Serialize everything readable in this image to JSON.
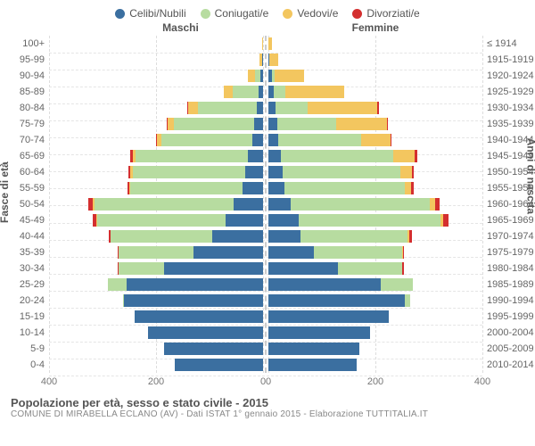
{
  "chart": {
    "type": "population-pyramid",
    "legend": [
      {
        "label": "Celibi/Nubili",
        "color": "#3b6fa0"
      },
      {
        "label": "Coniugati/e",
        "color": "#b7dca0"
      },
      {
        "label": "Vedovi/e",
        "color": "#f3c65f"
      },
      {
        "label": "Divorziati/e",
        "color": "#d42f2f"
      }
    ],
    "header_left": "Maschi",
    "header_right": "Femmine",
    "y_title_left": "Fasce di età",
    "y_title_right": "Anni di nascita",
    "x_max": 400,
    "x_ticks_left": [
      400,
      200,
      0
    ],
    "x_ticks_right": [
      0,
      200,
      400
    ],
    "background_color": "#ffffff",
    "grid_color": "#e5e5e5",
    "colors": {
      "celibi": "#3b6fa0",
      "coniugati": "#b7dca0",
      "vedovi": "#f3c65f",
      "divorziati": "#d42f2f"
    },
    "rows": [
      {
        "age": "100+",
        "year": "≤ 1914",
        "m": [
          0,
          0,
          2,
          0
        ],
        "f": [
          0,
          0,
          6,
          0
        ]
      },
      {
        "age": "95-99",
        "year": "1915-1919",
        "m": [
          2,
          0,
          5,
          0
        ],
        "f": [
          2,
          0,
          16,
          0
        ]
      },
      {
        "age": "90-94",
        "year": "1920-1924",
        "m": [
          5,
          10,
          14,
          0
        ],
        "f": [
          6,
          5,
          55,
          0
        ]
      },
      {
        "age": "85-89",
        "year": "1925-1929",
        "m": [
          8,
          48,
          18,
          0
        ],
        "f": [
          10,
          22,
          110,
          0
        ]
      },
      {
        "age": "80-84",
        "year": "1930-1934",
        "m": [
          12,
          110,
          18,
          2
        ],
        "f": [
          14,
          60,
          130,
          2
        ]
      },
      {
        "age": "75-79",
        "year": "1935-1939",
        "m": [
          16,
          150,
          12,
          2
        ],
        "f": [
          16,
          110,
          95,
          2
        ]
      },
      {
        "age": "70-74",
        "year": "1940-1944",
        "m": [
          20,
          170,
          8,
          2
        ],
        "f": [
          18,
          155,
          55,
          2
        ]
      },
      {
        "age": "65-69",
        "year": "1945-1949",
        "m": [
          28,
          210,
          6,
          4
        ],
        "f": [
          24,
          210,
          40,
          4
        ]
      },
      {
        "age": "60-64",
        "year": "1950-1954",
        "m": [
          34,
          210,
          4,
          4
        ],
        "f": [
          26,
          220,
          22,
          4
        ]
      },
      {
        "age": "55-59",
        "year": "1955-1959",
        "m": [
          38,
          210,
          2,
          4
        ],
        "f": [
          30,
          225,
          12,
          4
        ]
      },
      {
        "age": "50-54",
        "year": "1960-1964",
        "m": [
          55,
          260,
          3,
          8
        ],
        "f": [
          42,
          260,
          10,
          8
        ]
      },
      {
        "age": "45-49",
        "year": "1965-1969",
        "m": [
          70,
          240,
          2,
          6
        ],
        "f": [
          56,
          265,
          6,
          10
        ]
      },
      {
        "age": "40-44",
        "year": "1970-1974",
        "m": [
          95,
          190,
          0,
          4
        ],
        "f": [
          60,
          200,
          4,
          4
        ]
      },
      {
        "age": "35-39",
        "year": "1975-1979",
        "m": [
          130,
          140,
          0,
          2
        ],
        "f": [
          85,
          165,
          2,
          2
        ]
      },
      {
        "age": "30-34",
        "year": "1980-1984",
        "m": [
          185,
          85,
          0,
          2
        ],
        "f": [
          130,
          120,
          0,
          4
        ]
      },
      {
        "age": "25-29",
        "year": "1985-1989",
        "m": [
          255,
          35,
          0,
          0
        ],
        "f": [
          210,
          60,
          0,
          0
        ]
      },
      {
        "age": "20-24",
        "year": "1990-1994",
        "m": [
          260,
          2,
          0,
          0
        ],
        "f": [
          255,
          10,
          0,
          0
        ]
      },
      {
        "age": "15-19",
        "year": "1995-1999",
        "m": [
          240,
          0,
          0,
          0
        ],
        "f": [
          225,
          0,
          0,
          0
        ]
      },
      {
        "age": "10-14",
        "year": "2000-2004",
        "m": [
          215,
          0,
          0,
          0
        ],
        "f": [
          190,
          0,
          0,
          0
        ]
      },
      {
        "age": "5-9",
        "year": "2005-2009",
        "m": [
          185,
          0,
          0,
          0
        ],
        "f": [
          170,
          0,
          0,
          0
        ]
      },
      {
        "age": "0-4",
        "year": "2010-2014",
        "m": [
          165,
          0,
          0,
          0
        ],
        "f": [
          165,
          0,
          0,
          0
        ]
      }
    ],
    "footer_title": "Popolazione per età, sesso e stato civile - 2015",
    "footer_sub": "COMUNE DI MIRABELLA ECLANO (AV) - Dati ISTAT 1° gennaio 2015 - Elaborazione TUTTITALIA.IT"
  }
}
